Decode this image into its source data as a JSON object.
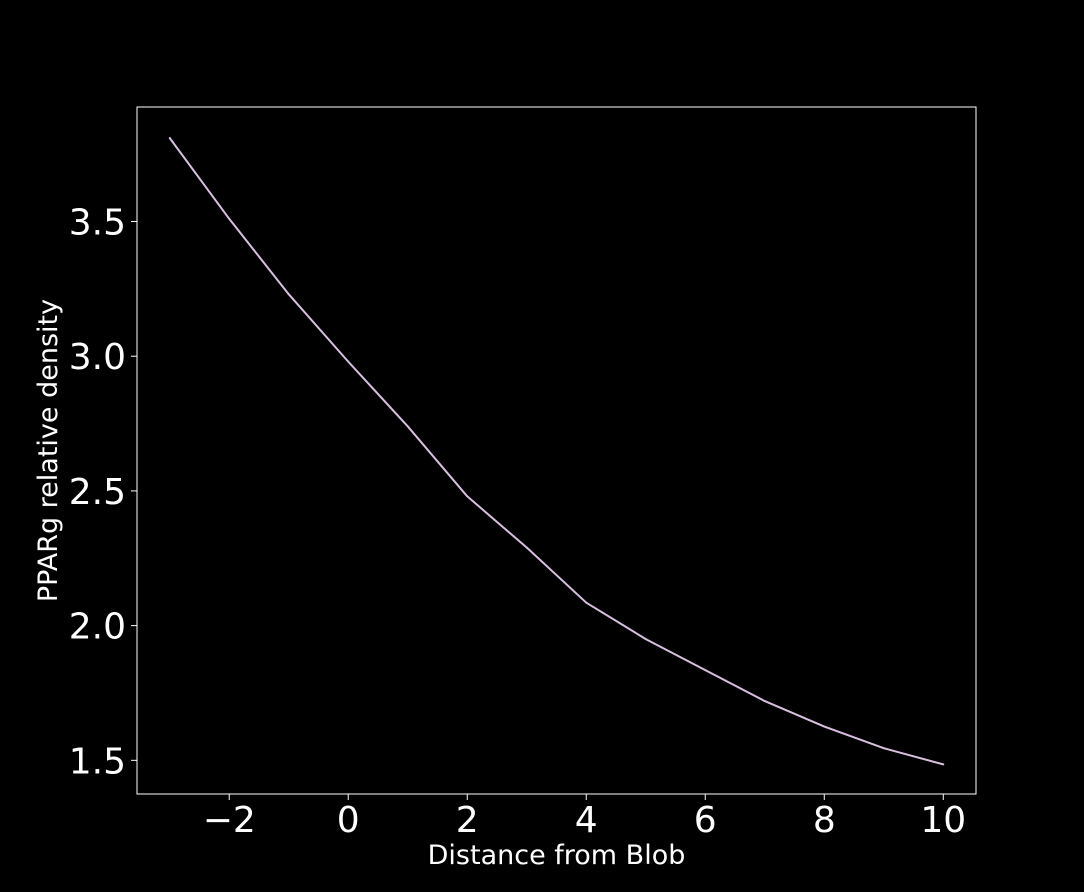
{
  "chart_data": {
    "type": "line",
    "title": "",
    "xlabel": "Distance from Blob",
    "ylabel": "PPARg relative density",
    "xlim": [
      -3.55,
      10.55
    ],
    "ylim": [
      1.375,
      3.925
    ],
    "xticks": [
      -2,
      0,
      2,
      4,
      6,
      8,
      10
    ],
    "xtick_labels": [
      "−2",
      "0",
      "2",
      "4",
      "6",
      "8",
      "10"
    ],
    "yticks": [
      1.5,
      2.0,
      2.5,
      3.0,
      3.5
    ],
    "ytick_labels": [
      "1.5",
      "2.0",
      "2.5",
      "3.0",
      "3.5"
    ],
    "grid": false,
    "legend": "none",
    "background_color": "#000000",
    "axes_color": "#ffffff",
    "series": [
      {
        "color": "#d8bfe0",
        "x": [
          -3,
          -2,
          -1,
          0,
          1,
          2,
          3,
          4,
          5,
          6,
          7,
          8,
          9,
          10
        ],
        "y": [
          3.81,
          3.51,
          3.23,
          2.98,
          2.74,
          2.48,
          2.29,
          2.085,
          1.95,
          1.835,
          1.72,
          1.625,
          1.545,
          1.485
        ]
      }
    ]
  }
}
